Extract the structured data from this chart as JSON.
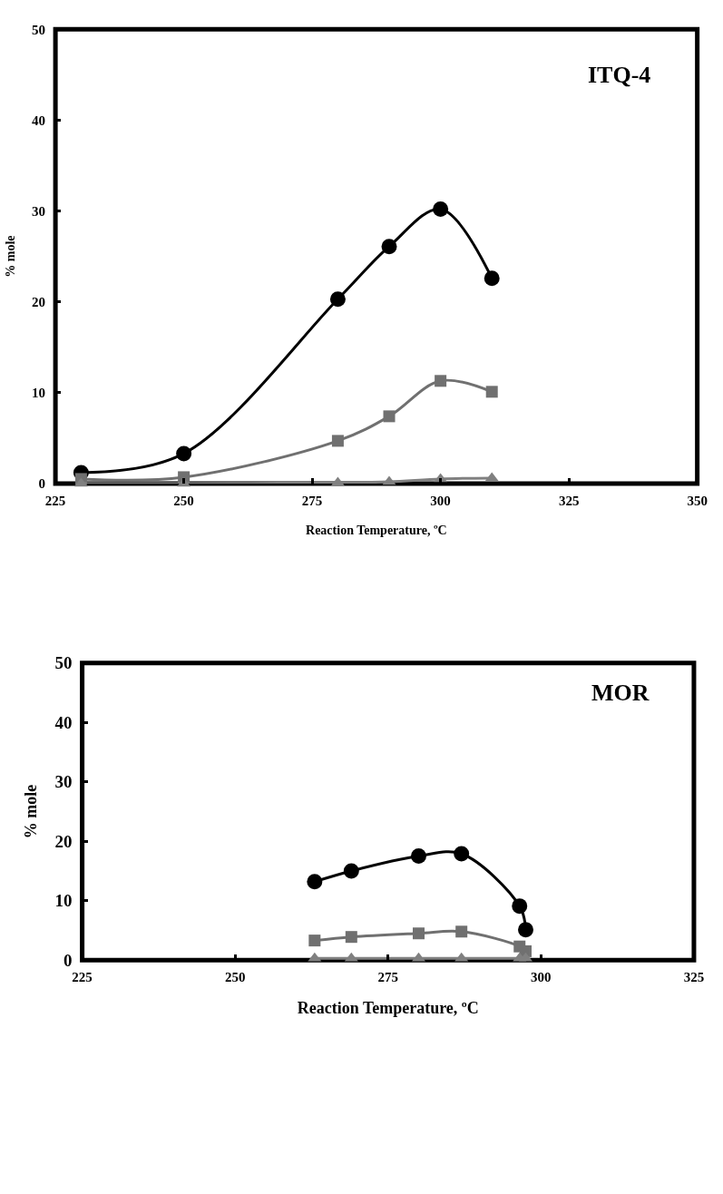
{
  "chart_data": [
    {
      "type": "line",
      "x": [
        230,
        250,
        280,
        290,
        300,
        310
      ],
      "xlabel": "Reaction Temperature, ºC",
      "ylabel": "% mole",
      "annotations": [
        "ITQ-4"
      ],
      "series": [
        {
          "color": "#000000",
          "marker": "circle",
          "values": [
            1.2,
            3.3,
            20.3,
            26.1,
            30.2,
            22.6
          ]
        },
        {
          "color": "#707070",
          "marker": "square",
          "values": [
            0.5,
            0.7,
            4.7,
            7.4,
            11.3,
            10.1
          ]
        },
        {
          "color": "#808080",
          "marker": "triangle",
          "values": [
            0,
            0,
            0.1,
            0.2,
            0.5,
            0.6
          ]
        }
      ],
      "xlim": [
        225,
        350
      ],
      "xticks": [
        225,
        250,
        275,
        300,
        325,
        350
      ],
      "ylim": [
        0,
        50
      ],
      "yticks": [
        0,
        10,
        20,
        30,
        40,
        50
      ],
      "grid": false,
      "line_style": "solid"
    },
    {
      "type": "line",
      "x": [
        263,
        269,
        280,
        287,
        296.5,
        297.5
      ],
      "xlabel": "Reaction Temperature, ºC",
      "ylabel": "% mole",
      "annotations": [
        "MOR"
      ],
      "series": [
        {
          "color": "#000000",
          "marker": "circle",
          "values": [
            13.2,
            15.0,
            17.5,
            17.9,
            9.1,
            5.1
          ]
        },
        {
          "color": "#707070",
          "marker": "square",
          "values": [
            3.3,
            3.9,
            4.5,
            4.8,
            2.3,
            1.5
          ]
        },
        {
          "color": "#808080",
          "marker": "triangle",
          "values": [
            0.3,
            0.3,
            0.3,
            0.3,
            0.3,
            0.3
          ]
        }
      ],
      "xlim": [
        225,
        325
      ],
      "xticks": [
        225,
        250,
        275,
        300,
        325
      ],
      "ylim": [
        0,
        50
      ],
      "yticks": [
        0,
        10,
        20,
        30,
        40,
        50
      ],
      "grid": false,
      "line_style": "solid"
    }
  ]
}
